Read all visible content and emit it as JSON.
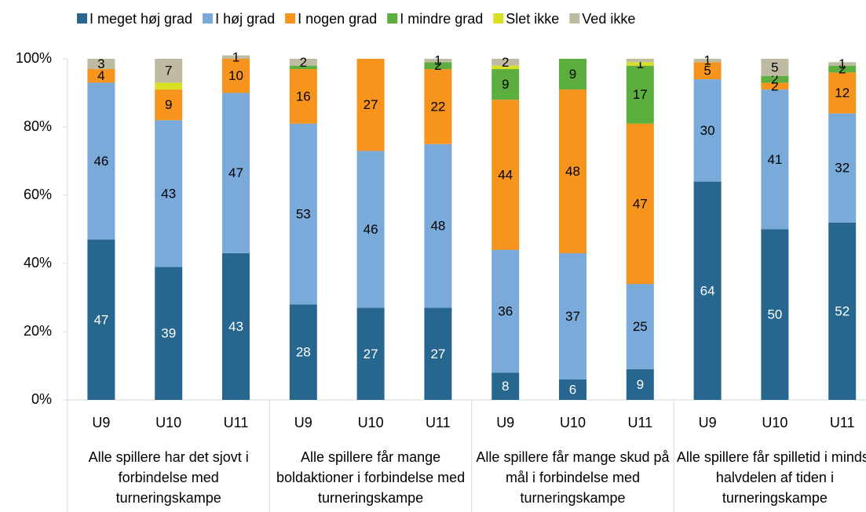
{
  "chart_data": {
    "type": "stacked_bar",
    "categories": [
      "U9",
      "U10",
      "U11",
      "U9",
      "U10",
      "U11",
      "U9",
      "U10",
      "U11",
      "U9",
      "U10",
      "U11"
    ],
    "groups": [
      "Alle spillere har det sjovt i forbindelse med turneringskampe",
      "Alle spillere får mange boldaktioner i forbindelse med turneringskampe",
      "Alle spillere får mange skud på mål i forbindelse med turneringskampe",
      "Alle spillere får spilletid i mindst halvdelen af tiden i turneringskampe"
    ],
    "ylim": [
      0,
      100
    ],
    "yticks": [
      {
        "value": 0,
        "label": "0%"
      },
      {
        "value": 20,
        "label": "20%"
      },
      {
        "value": 40,
        "label": "40%"
      },
      {
        "value": 60,
        "label": "60%"
      },
      {
        "value": 80,
        "label": "80%"
      },
      {
        "value": 100,
        "label": "100%"
      }
    ],
    "series": [
      {
        "name": "I meget høj grad",
        "color": "#26668f",
        "values": [
          47,
          39,
          43,
          28,
          27,
          27,
          8,
          6,
          9,
          64,
          50,
          52
        ],
        "value_labels": [
          "47",
          "39",
          "43",
          "28",
          "27",
          "27",
          "8",
          "6",
          "9",
          "64",
          "50",
          "52"
        ]
      },
      {
        "name": "I høj grad",
        "color": "#7aaad9",
        "values": [
          46,
          43,
          47,
          53,
          46,
          48,
          36,
          37,
          25,
          30,
          41,
          32
        ],
        "value_labels": [
          "46",
          "43",
          "47",
          "53",
          "46",
          "48",
          "36",
          "37",
          "25",
          "30",
          "41",
          "32"
        ]
      },
      {
        "name": "I nogen grad",
        "color": "#f7941d",
        "values": [
          4,
          9,
          10,
          16,
          27,
          22,
          44,
          48,
          47,
          5,
          2,
          12
        ],
        "value_labels": [
          "4",
          "9",
          "10",
          "16",
          "27",
          "22",
          "44",
          "48",
          "47",
          "5",
          "2",
          "12"
        ]
      },
      {
        "name": "I mindre grad",
        "color": "#5cae3e",
        "values": [
          0,
          0,
          0,
          1,
          0,
          2,
          9,
          9,
          17,
          0,
          2,
          2
        ],
        "value_labels": [
          null,
          null,
          null,
          null,
          null,
          "2",
          "9",
          "9",
          "17",
          null,
          "2",
          "2"
        ]
      },
      {
        "name": "Slet ikke",
        "color": "#d9e021",
        "values": [
          0,
          2,
          0,
          0,
          0,
          0,
          1,
          0,
          1,
          0,
          0,
          0
        ],
        "value_labels": [
          null,
          null,
          null,
          null,
          null,
          null,
          null,
          null,
          "1",
          null,
          null,
          null
        ]
      },
      {
        "name": "Ved ikke",
        "color": "#bfbba3",
        "values": [
          3,
          7,
          1,
          2,
          0,
          1,
          2,
          0,
          1,
          1,
          5,
          1
        ],
        "value_labels": [
          "3",
          "7",
          "1",
          "2",
          null,
          "1",
          "2",
          null,
          null,
          "1",
          "5",
          "1"
        ]
      }
    ]
  }
}
